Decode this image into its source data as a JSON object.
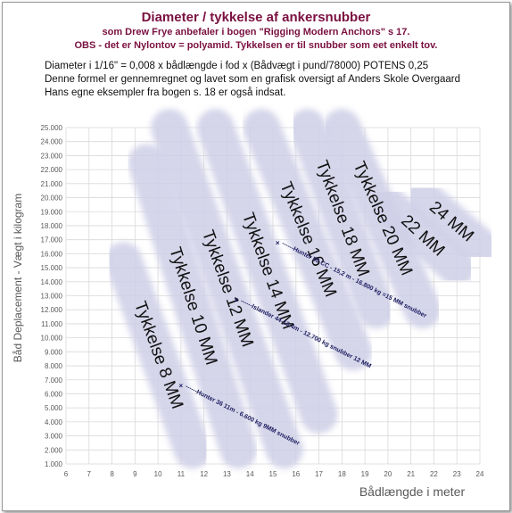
{
  "header": {
    "title": "Diameter / tykkelse af ankersnubber",
    "line1": "som Drew Frye anbefaler i bogen \"Rigging Modern Anchors\" s 17.",
    "line2": "OBS - det er Nylontov = polyamid.     Tykkelsen er til snubber som eet enkelt tov."
  },
  "notes": [
    "Diameter i 1/16\" = 0,008 x bådlængde i fod x (Bådvægt i pund/78000) POTENS 0,25",
    "Denne formel er gennemregnet og lavet som en grafisk oversigt af Anders Skole Overgaard",
    "Hans egne eksempler fra bogen s. 18 er også indsat."
  ],
  "colors": {
    "title": "#7a1040",
    "band": "#cfcfe8",
    "grid": "#d9d9d9",
    "axis_text": "#595959",
    "marker": "#1a1a5e"
  },
  "chart_data": {
    "type": "area",
    "xlabel": "Bådlængde i meter",
    "ylabel": "Båd Deplacement - Vægt i kilogram",
    "xlim": [
      6,
      24
    ],
    "ylim": [
      1000,
      25000
    ],
    "x_ticks": [
      "6",
      "7",
      "8",
      "9",
      "10",
      "11",
      "12",
      "13",
      "14",
      "15",
      "16",
      "17",
      "18",
      "19",
      "20",
      "21",
      "22",
      "23",
      "24"
    ],
    "y_ticks": [
      "1.000",
      "2.000",
      "3.000",
      "4.000",
      "5.000",
      "6.000",
      "7.000",
      "8.000",
      "9.000",
      "10.000",
      "11.000",
      "12.000",
      "13.000",
      "14.000",
      "15.000",
      "16.000",
      "17.000",
      "18.000",
      "19.000",
      "20.000",
      "21.000",
      "22.000",
      "23.000",
      "24.000",
      "25.000"
    ],
    "grid": true,
    "series": [
      {
        "name": "Tykkelse 8 MM",
        "from": [
          8.5,
          15500
        ],
        "to": [
          11.5,
          2000
        ]
      },
      {
        "name": "Tykkelse 10 MM",
        "from": [
          9.5,
          22500
        ],
        "to": [
          13.5,
          2000
        ]
      },
      {
        "name": "Tykkelse 12 MM",
        "from": [
          10.5,
          25000
        ],
        "to": [
          15.5,
          2000
        ]
      },
      {
        "name": "Tykkelse 14 MM",
        "from": [
          12.5,
          25000
        ],
        "to": [
          17.0,
          4500
        ]
      },
      {
        "name": "Tykkelse 16 MM",
        "from": [
          14.5,
          25000
        ],
        "to": [
          18.5,
          9000
        ]
      },
      {
        "name": "Tykkelse 18 MM",
        "from": [
          16.5,
          25000
        ],
        "to": [
          19.5,
          12000
        ]
      },
      {
        "name": "Tykkelse 20 MM",
        "from": [
          18.0,
          25000
        ],
        "to": [
          21.5,
          12000
        ]
      },
      {
        "name": "22 MM",
        "from": [
          20.0,
          19500
        ],
        "to": [
          23.0,
          15000
        ]
      },
      {
        "name": "24 MM",
        "from": [
          21.5,
          20000
        ],
        "to": [
          24.0,
          16500
        ]
      }
    ],
    "annotations": [
      {
        "label": "Hunter 36 11m - 6.600 kg 9MM snubber",
        "x": 11,
        "y": 6600
      },
      {
        "label": "Islander 44-13.4m - 12.700 kg snubber 12 MM",
        "x": 13.4,
        "y": 12700
      },
      {
        "label": "Hunter 50 CC - 15,2 m - 16.800 kg =15 MM snubber",
        "x": 15.2,
        "y": 16800
      }
    ]
  }
}
